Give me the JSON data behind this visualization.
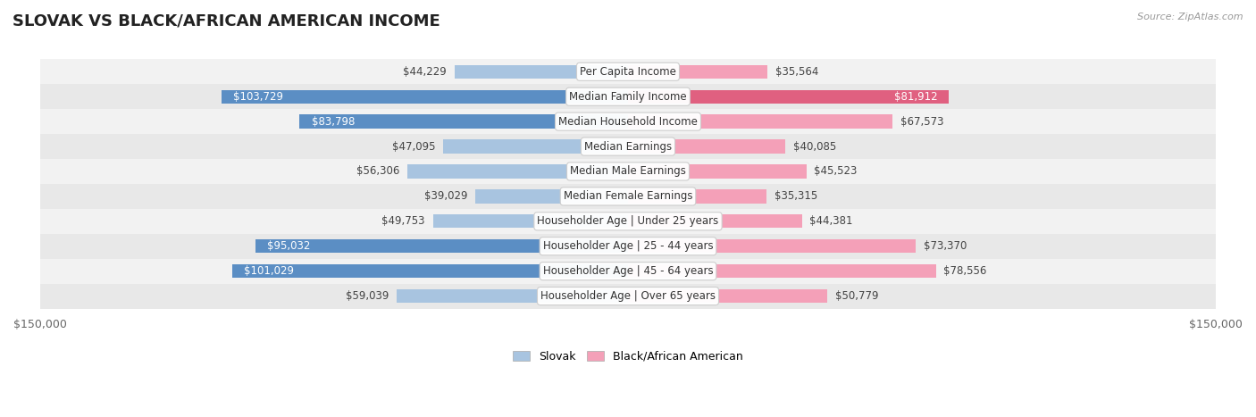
{
  "title": "SLOVAK VS BLACK/AFRICAN AMERICAN INCOME",
  "source": "Source: ZipAtlas.com",
  "categories": [
    "Per Capita Income",
    "Median Family Income",
    "Median Household Income",
    "Median Earnings",
    "Median Male Earnings",
    "Median Female Earnings",
    "Householder Age | Under 25 years",
    "Householder Age | 25 - 44 years",
    "Householder Age | 45 - 64 years",
    "Householder Age | Over 65 years"
  ],
  "slovak_values": [
    44229,
    103729,
    83798,
    47095,
    56306,
    39029,
    49753,
    95032,
    101029,
    59039
  ],
  "black_values": [
    35564,
    81912,
    67573,
    40085,
    45523,
    35315,
    44381,
    73370,
    78556,
    50779
  ],
  "slovak_labels": [
    "$44,229",
    "$103,729",
    "$83,798",
    "$47,095",
    "$56,306",
    "$39,029",
    "$49,753",
    "$95,032",
    "$101,029",
    "$59,039"
  ],
  "black_labels": [
    "$35,564",
    "$81,912",
    "$67,573",
    "$40,085",
    "$45,523",
    "$35,315",
    "$44,381",
    "$73,370",
    "$78,556",
    "$50,779"
  ],
  "slovak_color": "#a8c4e0",
  "slovak_color_dark": "#5b8ec4",
  "black_color": "#f4a0b8",
  "black_color_dark": "#e06080",
  "max_value": 150000,
  "row_colors": [
    "#f2f2f2",
    "#e8e8e8"
  ],
  "title_fontsize": 13,
  "label_fontsize": 8.5,
  "category_fontsize": 8.5,
  "legend_labels": [
    "Slovak",
    "Black/African American"
  ],
  "slovak_dark_threshold": 80000,
  "black_dark_threshold": 80000
}
